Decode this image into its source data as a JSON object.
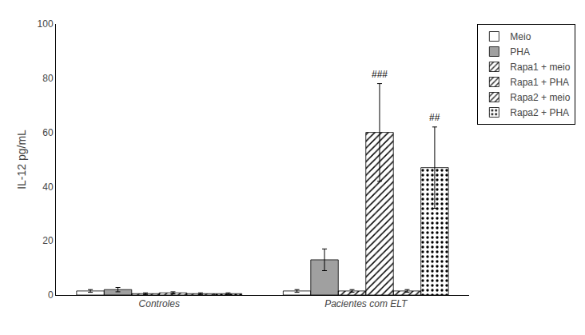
{
  "chart_data": {
    "type": "bar",
    "categories": [
      "Controles",
      "Pacientes com ELT"
    ],
    "series": [
      {
        "name": "Meio",
        "color": "white",
        "values": [
          1.5,
          1.5
        ],
        "errors": [
          0.5,
          0.5
        ]
      },
      {
        "name": "PHA",
        "color": "#a0a0a0",
        "values": [
          2.0,
          13.0
        ],
        "errors": [
          0.8,
          4.0
        ]
      },
      {
        "name": "Rapa1 + meio",
        "color": "white",
        "values": [
          0.5,
          1.5
        ],
        "errors": [
          0.3,
          0.5
        ]
      },
      {
        "name": "Rapa1 + PHA",
        "color": "white",
        "values": [
          0.8,
          60.0
        ],
        "errors": [
          0.4,
          18.0
        ]
      },
      {
        "name": "Rapa2 + meio",
        "color": "white",
        "values": [
          0.5,
          1.5
        ],
        "errors": [
          0.3,
          0.5
        ]
      },
      {
        "name": "Rapa2 + PHA",
        "color": "#606060",
        "values": [
          0.5,
          47.0
        ],
        "errors": [
          0.3,
          15.0
        ]
      }
    ],
    "annotations": [
      {
        "category": "Pacientes com ELT",
        "series": "Rapa1 + PHA",
        "text": "###"
      },
      {
        "category": "Pacientes com ELT",
        "series": "Rapa2 + PHA",
        "text": "##"
      }
    ],
    "ylabel": "IL-12 pg/mL",
    "ylim": [
      0,
      100
    ],
    "yticks": [
      0,
      20,
      40,
      60,
      80,
      100
    ],
    "grid": false,
    "legend": "upper right"
  }
}
